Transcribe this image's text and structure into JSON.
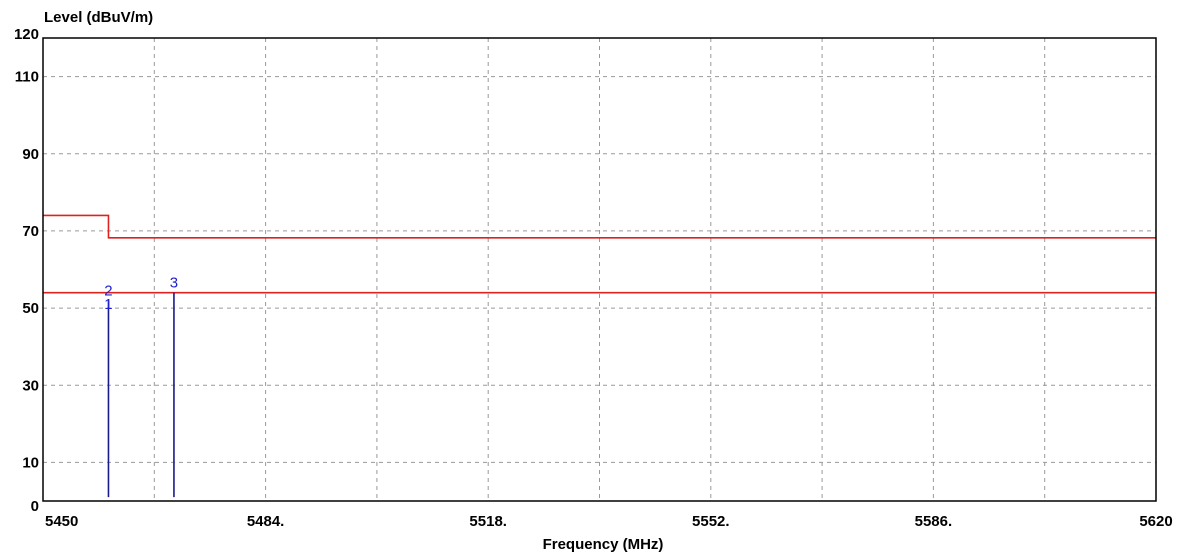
{
  "chart_data": {
    "type": "line",
    "ylabel": "Level (dBuV/m)",
    "xlabel": "Frequency (MHz)",
    "xlim": [
      5450,
      5620
    ],
    "ylim": [
      0,
      120
    ],
    "x_ticks": [
      {
        "value": 5450,
        "label": "5450"
      },
      {
        "value": 5484,
        "label": "5484."
      },
      {
        "value": 5518,
        "label": "5518."
      },
      {
        "value": 5552,
        "label": "5552."
      },
      {
        "value": 5586,
        "label": "5586."
      },
      {
        "value": 5620,
        "label": "5620"
      }
    ],
    "y_ticks": [
      {
        "value": 0,
        "label": "0"
      },
      {
        "value": 10,
        "label": "10"
      },
      {
        "value": 30,
        "label": "30"
      },
      {
        "value": 50,
        "label": "50"
      },
      {
        "value": 70,
        "label": "70"
      },
      {
        "value": 90,
        "label": "90"
      },
      {
        "value": 110,
        "label": "110"
      },
      {
        "value": 120,
        "label": "120"
      }
    ],
    "x_grid": [
      5467,
      5484,
      5501,
      5518,
      5535,
      5552,
      5569,
      5586,
      5603
    ],
    "y_grid": [
      10,
      30,
      50,
      70,
      90,
      110
    ],
    "grid": true,
    "colors": {
      "limit": "#dd2222",
      "marker": "#1a1a8c",
      "marker_label": "#2222cc",
      "grid": "#9a9a9a"
    },
    "limit_lines": [
      {
        "points": [
          [
            5450,
            74
          ],
          [
            5460,
            74
          ],
          [
            5460,
            68.2
          ],
          [
            5620,
            68.2
          ]
        ]
      },
      {
        "points": [
          [
            5450,
            54
          ],
          [
            5620,
            54
          ]
        ]
      }
    ],
    "markers": [
      {
        "label": "1",
        "x": 5460,
        "y": 48.5
      },
      {
        "label": "2",
        "x": 5460,
        "y": 52
      },
      {
        "label": "3",
        "x": 5470,
        "y": 54
      }
    ]
  }
}
